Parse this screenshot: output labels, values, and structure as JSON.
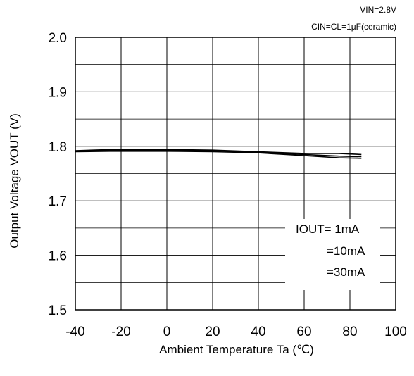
{
  "chart_data": {
    "type": "line",
    "conditions": [
      "VIN=2.8V",
      "CIN=CL=1μF(ceramic)"
    ],
    "xlabel": "Ambient Temperature Ta  (℃)",
    "ylabel": "Output Voltage  VOUT  (V)",
    "xlim": [
      -40,
      100
    ],
    "ylim": [
      1.5,
      2.0
    ],
    "xticks": [
      -40,
      -20,
      0,
      20,
      40,
      60,
      80,
      100
    ],
    "yticks": [
      1.5,
      1.6,
      1.7,
      1.8,
      1.9,
      2.0
    ],
    "ytick_labels": [
      "1.5",
      "1.6",
      "1.7",
      "1.8",
      "1.9",
      "2.0"
    ],
    "grid": true,
    "legend_position": "bottom-right",
    "legend_labels": [
      "IOUT=  1mA",
      "=10mA",
      "=30mA"
    ],
    "colors": {
      "line": "#000000",
      "grid": "#000000",
      "background": "#ffffff"
    },
    "series": [
      {
        "name": "IOUT=  1mA",
        "x": [
          -40,
          -25,
          0,
          20,
          40,
          60,
          75,
          85
        ],
        "y": [
          1.792,
          1.794,
          1.794,
          1.793,
          1.79,
          1.787,
          1.787,
          1.785
        ]
      },
      {
        "name": "=10mA",
        "x": [
          -40,
          -25,
          0,
          20,
          40,
          60,
          75,
          85
        ],
        "y": [
          1.791,
          1.793,
          1.793,
          1.792,
          1.789,
          1.785,
          1.782,
          1.781
        ]
      },
      {
        "name": "=30mA",
        "x": [
          -40,
          -25,
          0,
          20,
          40,
          60,
          75,
          85
        ],
        "y": [
          1.79,
          1.791,
          1.791,
          1.79,
          1.788,
          1.783,
          1.779,
          1.778
        ]
      }
    ]
  }
}
